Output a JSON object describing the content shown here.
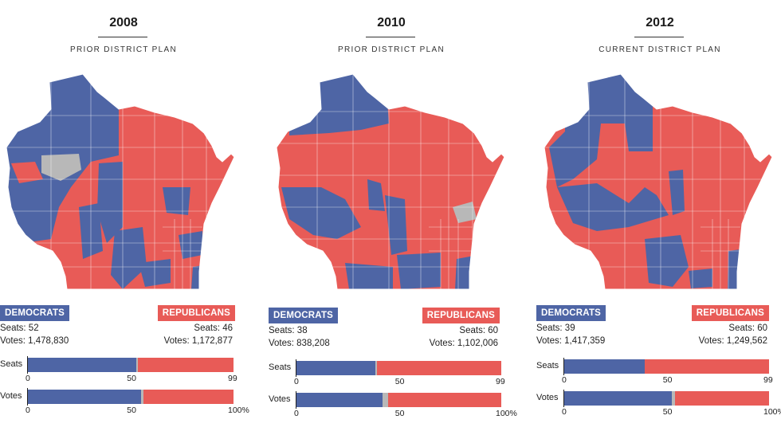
{
  "panels": [
    {
      "year": "2008",
      "plan": "PRIOR DISTRICT PLAN",
      "dem": {
        "label": "DEMOCRATS",
        "seats": "Seats: 52",
        "votes": "Votes: 1,478,830"
      },
      "rep": {
        "label": "REPUBLICANS",
        "seats": "Seats: 46",
        "votes": "Votes: 1,172,877"
      },
      "seats_bar": {
        "dem": 52,
        "other": 1,
        "rep": 46
      },
      "votes_bar": {
        "dem": 55.0,
        "other": 1.3,
        "rep": 43.7
      },
      "seats_label": "Seats",
      "votes_label": "Votes",
      "seats_ticks": [
        "0",
        "50",
        "99"
      ],
      "votes_ticks": [
        "0",
        "50",
        "100%"
      ]
    },
    {
      "year": "2010",
      "plan": "PRIOR DISTRICT PLAN",
      "dem": {
        "label": "DEMOCRATS",
        "seats": "Seats: 38",
        "votes": "Votes: 838,208"
      },
      "rep": {
        "label": "REPUBLICANS",
        "seats": "Seats: 60",
        "votes": "Votes: 1,102,006"
      },
      "seats_bar": {
        "dem": 38,
        "other": 1,
        "rep": 60
      },
      "votes_bar": {
        "dem": 42.2,
        "other": 2.5,
        "rep": 55.3
      },
      "seats_label": "Seats",
      "votes_label": "Votes",
      "seats_ticks": [
        "0",
        "50",
        "99"
      ],
      "votes_ticks": [
        "0",
        "50",
        "100%"
      ]
    },
    {
      "year": "2012",
      "plan": "CURRENT DISTRICT PLAN",
      "dem": {
        "label": "DEMOCRATS",
        "seats": "Seats: 39",
        "votes": "Votes: 1,417,359"
      },
      "rep": {
        "label": "REPUBLICANS",
        "seats": "Seats: 60",
        "votes": "Votes: 1,249,562"
      },
      "seats_bar": {
        "dem": 39,
        "other": 0,
        "rep": 60
      },
      "votes_bar": {
        "dem": 52.5,
        "other": 1.5,
        "rep": 46.0
      },
      "seats_label": "Seats",
      "votes_label": "Votes",
      "seats_ticks": [
        "0",
        "50",
        "99"
      ],
      "votes_ticks": [
        "0",
        "50",
        "100%"
      ]
    }
  ],
  "colors": {
    "dem": "#4e65a5",
    "rep": "#e85b57",
    "other": "#b8b8b8"
  }
}
